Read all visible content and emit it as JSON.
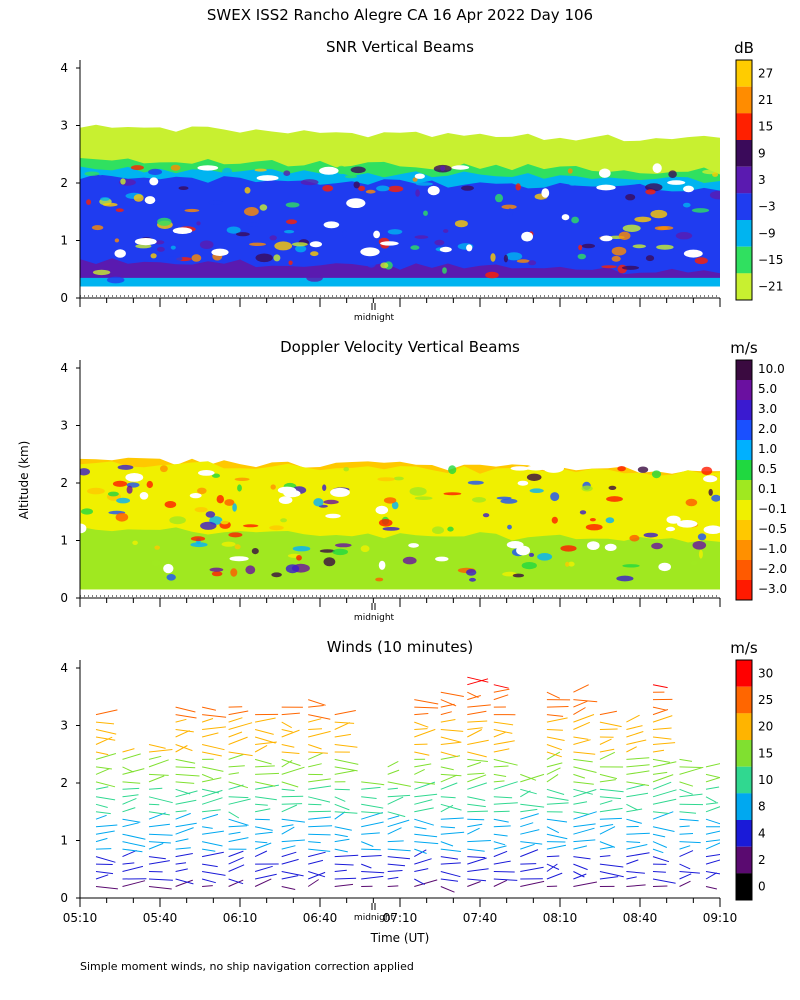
{
  "figure": {
    "title": "SWEX ISS2 Rancho Alegre CA  16 Apr 2022 Day 106",
    "ylabel": "Altitude (km)",
    "xlabel": "Time (UT)",
    "midnight_label": "midnight",
    "footnote": "Simple moment winds, no ship navigation correction applied"
  },
  "chart_data": [
    {
      "type": "heatmap",
      "title": "SNR Vertical Beams",
      "ylabel": "Altitude (km)",
      "ylim": [
        0,
        4
      ],
      "yticks": [
        "0",
        "1",
        "2",
        "3",
        "4"
      ],
      "colorbar": {
        "unit": "dB",
        "labels": [
          "27",
          "21",
          "15",
          "9",
          "3",
          "−3",
          "−9",
          "−15",
          "−21"
        ],
        "colors": [
          "#ffcc00",
          "#ff8c00",
          "#ff2000",
          "#3a0a5a",
          "#5a1ab0",
          "#1f3cf0",
          "#00b4f0",
          "#30e060",
          "#c8f030"
        ]
      },
      "layers": [
        {
          "label": "-21",
          "alt_km": [
            0.3,
            2.95
          ],
          "color": "#c8f030"
        },
        {
          "label": "-15",
          "alt_km": [
            0.3,
            2.4
          ],
          "color": "#30e060"
        },
        {
          "label": "-9",
          "alt_km": [
            0.2,
            2.25
          ],
          "color": "#00b4f0"
        },
        {
          "label": "-3",
          "alt_km": [
            0.4,
            2.1
          ],
          "color": "#1f3cf0"
        },
        {
          "label": "3",
          "alt_km": [
            0.35,
            0.65
          ],
          "color": "#5a1ab0"
        }
      ]
    },
    {
      "type": "heatmap",
      "title": "Doppler Velocity Vertical Beams",
      "ylabel": "Altitude (km)",
      "ylim": [
        0,
        4
      ],
      "yticks": [
        "0",
        "1",
        "2",
        "3",
        "4"
      ],
      "colorbar": {
        "unit": "m/s",
        "labels": [
          "10.0",
          "5.0",
          "3.0",
          "2.0",
          "1.0",
          "0.5",
          "0.1",
          "−0.1",
          "−0.5",
          "−1.0",
          "−2.0",
          "−3.0"
        ],
        "colors": [
          "#3a0a40",
          "#6a10a0",
          "#3a1ad0",
          "#1a50ff",
          "#00b0ff",
          "#20d840",
          "#a0e820",
          "#f0f000",
          "#ffc800",
          "#ff9000",
          "#ff5a00",
          "#ff1a00"
        ]
      },
      "layers": [
        {
          "label": "-0.5",
          "alt_km": [
            0.15,
            2.4
          ],
          "color": "#ffc800"
        },
        {
          "label": "-0.1",
          "alt_km": [
            0.15,
            2.35
          ],
          "color": "#f0f000"
        },
        {
          "label": "0.1",
          "alt_km": [
            0.15,
            1.2
          ],
          "color": "#a0e820"
        }
      ]
    },
    {
      "type": "scatter",
      "title": "Winds (10 minutes)",
      "ylabel": "Altitude (km)",
      "xlabel": "Time (UT)",
      "ylim": [
        0,
        4
      ],
      "yticks": [
        "0",
        "1",
        "2",
        "3",
        "4"
      ],
      "xticks": [
        "05:10",
        "05:40",
        "06:10",
        "06:40",
        "07:10",
        "07:40",
        "08:10",
        "08:40",
        "09:10"
      ],
      "colorbar": {
        "unit": "m/s",
        "labels": [
          "30",
          "25",
          "20",
          "15",
          "10",
          "8",
          "4",
          "2",
          "0"
        ],
        "colors": [
          "#ff0000",
          "#ff6600",
          "#ffb400",
          "#80e030",
          "#30d890",
          "#00a8f0",
          "#1a1ad8",
          "#5a0a70",
          "#000000"
        ]
      },
      "barbs": {
        "interval_minutes": 10,
        "direction": "winds generally from the west/north-west",
        "max_alt_km": 3.9
      }
    }
  ]
}
